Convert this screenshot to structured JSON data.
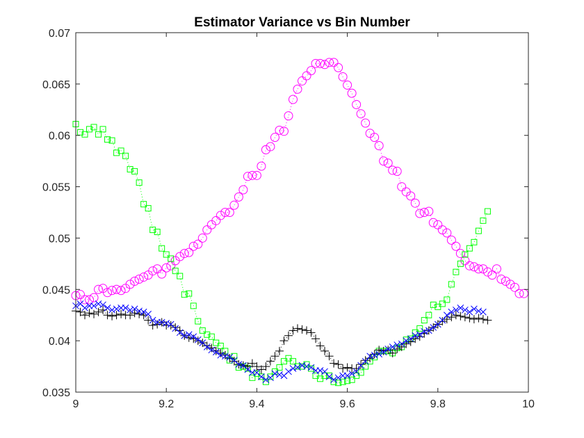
{
  "chart_data": {
    "type": "scatter",
    "title": "Estimator Variance vs Bin Number",
    "xlabel": "",
    "ylabel": "",
    "xlim": [
      9,
      10
    ],
    "ylim": [
      0.035,
      0.07
    ],
    "x_ticks": [
      9,
      9.2,
      9.4,
      9.6,
      9.8,
      10
    ],
    "x_tick_labels": [
      "9",
      "9.2",
      "9.4",
      "9.6",
      "9.8",
      "10"
    ],
    "y_ticks": [
      0.035,
      0.04,
      0.045,
      0.05,
      0.055,
      0.06,
      0.065,
      0.07
    ],
    "y_tick_labels": [
      "0.035",
      "0.04",
      "0.045",
      "0.05",
      "0.055",
      "0.06",
      "0.065",
      "0.07"
    ],
    "grid": false,
    "legend": "none",
    "x_start": 9.0,
    "x_step": 0.01,
    "series": [
      {
        "marker": "circle",
        "color": "#ff00ff",
        "line": "dotted",
        "values": [
          0.0444,
          0.0445,
          0.044,
          0.044,
          0.0442,
          0.045,
          0.0451,
          0.0447,
          0.0449,
          0.045,
          0.0449,
          0.0451,
          0.0455,
          0.0458,
          0.046,
          0.0462,
          0.0464,
          0.0468,
          0.047,
          0.0465,
          0.0471,
          0.0473,
          0.0478,
          0.0482,
          0.0485,
          0.0486,
          0.0492,
          0.0494,
          0.05,
          0.0508,
          0.0513,
          0.0517,
          0.0522,
          0.0525,
          0.0525,
          0.0532,
          0.054,
          0.0547,
          0.056,
          0.0561,
          0.0561,
          0.057,
          0.0586,
          0.0589,
          0.0598,
          0.0605,
          0.0604,
          0.0619,
          0.0635,
          0.0645,
          0.0653,
          0.0658,
          0.0663,
          0.067,
          0.067,
          0.0669,
          0.0671,
          0.0671,
          0.0666,
          0.0657,
          0.0649,
          0.0641,
          0.063,
          0.0621,
          0.0612,
          0.0602,
          0.0598,
          0.059,
          0.0575,
          0.0573,
          0.0566,
          0.0565,
          0.055,
          0.0545,
          0.0541,
          0.0534,
          0.0524,
          0.0525,
          0.0526,
          0.0515,
          0.0513,
          0.0508,
          0.0505,
          0.0498,
          0.0492,
          0.0485,
          0.0478,
          0.0473,
          0.0472,
          0.047,
          0.047,
          0.0467,
          0.0464,
          0.047,
          0.046,
          0.0458,
          0.0455,
          0.0452,
          0.0446,
          0.0446
        ]
      },
      {
        "marker": "square",
        "color": "#00ff00",
        "line": "dotted",
        "values": [
          0.0611,
          0.0603,
          0.0601,
          0.0606,
          0.0608,
          0.0601,
          0.0606,
          0.0596,
          0.0595,
          0.0583,
          0.0585,
          0.058,
          0.0567,
          0.0565,
          0.0554,
          0.0533,
          0.0529,
          0.0508,
          0.0506,
          0.049,
          0.0484,
          0.048,
          0.0468,
          0.0463,
          0.0445,
          0.0446,
          0.0434,
          0.0419,
          0.041,
          0.0406,
          0.0404,
          0.0398,
          0.0395,
          0.039,
          0.0381,
          0.0385,
          0.0374,
          0.0375,
          0.0373,
          0.0364,
          0.0368,
          0.0365,
          0.036,
          0.0365,
          0.037,
          0.0374,
          0.038,
          0.0383,
          0.038,
          0.0375,
          0.0375,
          0.0377,
          0.0373,
          0.0366,
          0.0363,
          0.0366,
          0.0366,
          0.036,
          0.0359,
          0.036,
          0.0361,
          0.0362,
          0.0366,
          0.0369,
          0.0375,
          0.038,
          0.0384,
          0.039,
          0.039,
          0.039,
          0.0388,
          0.0393,
          0.0394,
          0.0401,
          0.0402,
          0.0408,
          0.0412,
          0.042,
          0.0425,
          0.0435,
          0.0433,
          0.0436,
          0.044,
          0.0455,
          0.0467,
          0.0475,
          0.0484,
          0.049,
          0.0496,
          0.0507,
          0.0517,
          0.0526
        ]
      },
      {
        "marker": "plus",
        "color": "#000000",
        "line": "dotted",
        "values": [
          0.0429,
          0.0428,
          0.0425,
          0.0427,
          0.0426,
          0.0428,
          0.043,
          0.0425,
          0.0424,
          0.0425,
          0.0426,
          0.0425,
          0.0425,
          0.0427,
          0.0426,
          0.0425,
          0.042,
          0.0415,
          0.0416,
          0.0418,
          0.0415,
          0.0415,
          0.0413,
          0.041,
          0.0405,
          0.0403,
          0.0402,
          0.04,
          0.0398,
          0.0395,
          0.0393,
          0.039,
          0.0388,
          0.0386,
          0.0383,
          0.038,
          0.0377,
          0.0376,
          0.0375,
          0.0378,
          0.0375,
          0.0372,
          0.0375,
          0.038,
          0.0385,
          0.039,
          0.04,
          0.0405,
          0.041,
          0.0412,
          0.0411,
          0.041,
          0.0408,
          0.0402,
          0.0395,
          0.039,
          0.0385,
          0.0378,
          0.0377,
          0.0373,
          0.0374,
          0.0373,
          0.0373,
          0.0377,
          0.0381,
          0.0383,
          0.0387,
          0.0391,
          0.039,
          0.0391,
          0.0388,
          0.0392,
          0.0394,
          0.0397,
          0.0399,
          0.0402,
          0.0404,
          0.0407,
          0.041,
          0.0413,
          0.0416,
          0.0419,
          0.0421,
          0.0423,
          0.0425,
          0.0424,
          0.0423,
          0.0422,
          0.0421,
          0.0422,
          0.0421,
          0.042
        ]
      },
      {
        "marker": "x",
        "color": "#0000ff",
        "line": "dotted",
        "values": [
          0.0434,
          0.0436,
          0.0432,
          0.0434,
          0.0434,
          0.0436,
          0.0435,
          0.0432,
          0.043,
          0.0431,
          0.0432,
          0.0432,
          0.043,
          0.0431,
          0.0429,
          0.0428,
          0.0426,
          0.042,
          0.0418,
          0.0418,
          0.0417,
          0.0416,
          0.0412,
          0.0408,
          0.0405,
          0.0406,
          0.0404,
          0.0401,
          0.0398,
          0.0394,
          0.0391,
          0.0389,
          0.0386,
          0.0385,
          0.0384,
          0.0381,
          0.0377,
          0.0376,
          0.0372,
          0.0369,
          0.0369,
          0.0365,
          0.0362,
          0.0364,
          0.0368,
          0.0367,
          0.0366,
          0.037,
          0.0373,
          0.0374,
          0.0376,
          0.0375,
          0.0374,
          0.0371,
          0.0371,
          0.037,
          0.0365,
          0.0362,
          0.0364,
          0.0366,
          0.0366,
          0.0368,
          0.037,
          0.0376,
          0.038,
          0.0385,
          0.0386,
          0.0387,
          0.0389,
          0.0392,
          0.0394,
          0.0396,
          0.0397,
          0.04,
          0.0402,
          0.0405,
          0.0406,
          0.0409,
          0.041,
          0.0413,
          0.0416,
          0.042,
          0.0425,
          0.0428,
          0.043,
          0.0432,
          0.043,
          0.0428,
          0.0431,
          0.0429,
          0.0428
        ]
      }
    ]
  }
}
